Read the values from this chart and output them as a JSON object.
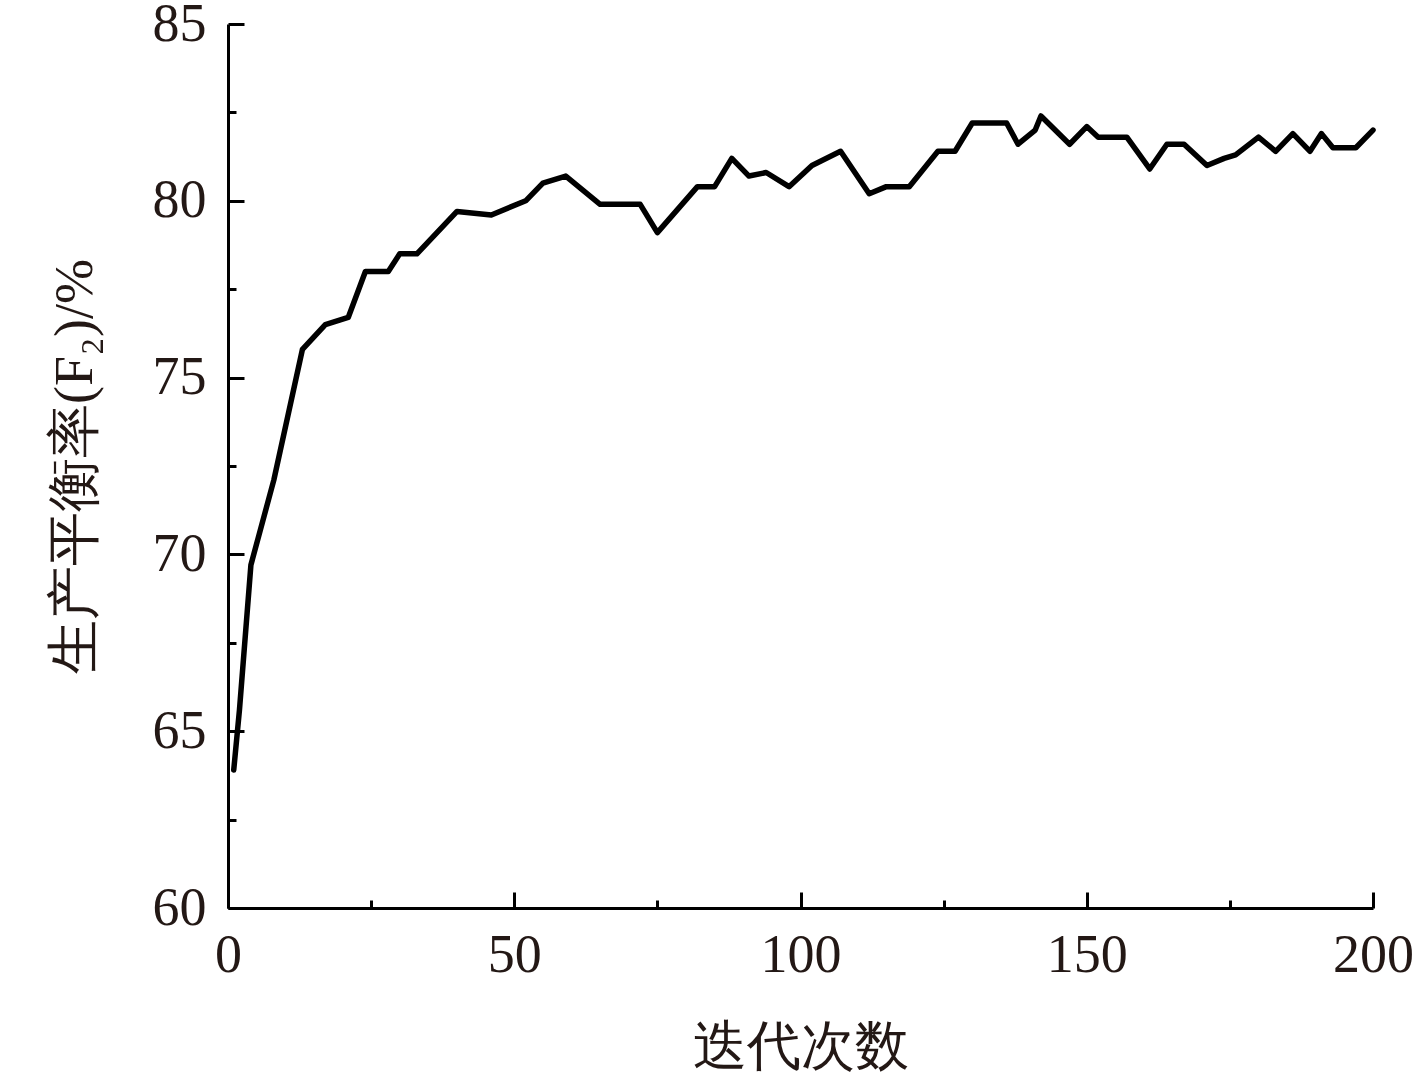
{
  "chart_data": {
    "type": "line",
    "xlabel": "迭代次数",
    "ylabel": "生产平衡率(F₂)/%",
    "x": [
      1,
      2,
      4,
      8,
      13,
      17,
      21,
      24,
      28,
      30,
      33,
      40,
      46,
      52,
      55,
      59,
      65,
      72,
      75,
      82,
      85,
      88,
      91,
      94,
      98,
      102,
      107,
      112,
      115,
      119,
      124,
      127,
      130,
      136,
      138,
      141,
      142,
      147,
      150,
      152,
      157,
      161,
      164,
      167,
      171,
      174,
      176,
      180,
      183,
      186,
      189,
      191,
      193,
      197,
      200
    ],
    "series": [
      {
        "color": "#000000",
        "values": [
          63.9,
          65.6,
          69.7,
          72.1,
          75.8,
          76.5,
          76.7,
          78.0,
          78.0,
          78.5,
          78.5,
          79.7,
          79.6,
          80.0,
          80.5,
          80.7,
          79.9,
          79.9,
          79.1,
          80.4,
          80.4,
          81.2,
          80.7,
          80.8,
          80.4,
          81.0,
          81.4,
          80.2,
          80.4,
          80.4,
          81.4,
          81.4,
          82.2,
          82.2,
          81.6,
          82.0,
          82.4,
          81.6,
          82.1,
          81.8,
          81.8,
          80.9,
          81.6,
          81.6,
          81.0,
          81.2,
          81.3,
          81.8,
          81.4,
          81.9,
          81.4,
          81.9,
          81.5,
          81.5,
          82.0
        ]
      }
    ],
    "xlim": [
      0,
      200
    ],
    "ylim": [
      60,
      85
    ],
    "xticks": [
      0,
      {
        "value": 25,
        "label": null
      },
      50,
      {
        "value": 75,
        "label": null
      },
      100,
      {
        "value": 125,
        "label": null
      },
      150,
      {
        "value": 175,
        "label": null
      },
      200
    ],
    "yticks": [
      60,
      {
        "value": 62.5,
        "label": null
      },
      65,
      {
        "value": 67.5,
        "label": null
      },
      70,
      {
        "value": 72.5,
        "label": null
      },
      75,
      {
        "value": 77.5,
        "label": null
      },
      80,
      {
        "value": 82.5,
        "label": null
      },
      85
    ],
    "line_style": "solid"
  }
}
